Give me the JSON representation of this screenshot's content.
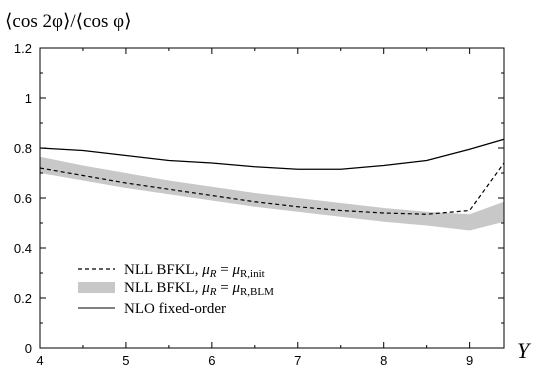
{
  "chart_data": {
    "type": "line",
    "ylabel": "⟨cos 2φ⟩/⟨cos φ⟩",
    "xlabel": "Y",
    "xlim": [
      4,
      9.4
    ],
    "ylim": [
      0,
      1.2
    ],
    "xticks": [
      "4",
      "5",
      "6",
      "7",
      "8",
      "9"
    ],
    "yticks": [
      "0",
      "0.2",
      "0.4",
      "0.6",
      "0.8",
      "1",
      "1.2"
    ],
    "grid": false,
    "legend_position": "bottom-left",
    "series": [
      {
        "name": "NLL BFKL, μR = μR,init",
        "style": "dashed",
        "color": "#000000",
        "x": [
          4,
          4.5,
          5,
          5.5,
          6,
          6.5,
          7,
          7.5,
          8,
          8.5,
          9,
          9.4
        ],
        "y": [
          0.72,
          0.69,
          0.66,
          0.635,
          0.61,
          0.585,
          0.565,
          0.55,
          0.54,
          0.535,
          0.55,
          0.74
        ]
      },
      {
        "name": "NLL BFKL, μR = μR,BLM",
        "style": "band",
        "color": "#c8c8c8",
        "x": [
          4,
          4.5,
          5,
          5.5,
          6,
          6.5,
          7,
          7.5,
          8,
          8.5,
          9,
          9.4
        ],
        "y_low": [
          0.7,
          0.67,
          0.64,
          0.615,
          0.59,
          0.565,
          0.545,
          0.525,
          0.505,
          0.49,
          0.47,
          0.505
        ],
        "y_high": [
          0.765,
          0.73,
          0.7,
          0.67,
          0.645,
          0.62,
          0.6,
          0.58,
          0.56,
          0.545,
          0.535,
          0.585
        ]
      },
      {
        "name": "NLO fixed-order",
        "style": "solid",
        "color": "#000000",
        "x": [
          4,
          4.5,
          5,
          5.5,
          6,
          6.5,
          7,
          7.5,
          8,
          8.5,
          9,
          9.4
        ],
        "y": [
          0.8,
          0.79,
          0.77,
          0.75,
          0.74,
          0.725,
          0.715,
          0.715,
          0.73,
          0.75,
          0.795,
          0.835
        ]
      }
    ],
    "legend": {
      "entry1": {
        "pre": "NLL BFKL, ",
        "mu": "μ",
        "sub": "R",
        "eq": " = ",
        "mu2": "μ",
        "sub2": "R,init"
      },
      "entry2": {
        "pre": "NLL BFKL, ",
        "mu": "μ",
        "sub": "R",
        "eq": " = ",
        "mu2": "μ",
        "sub2": "R,BLM"
      },
      "entry3": {
        "text": "NLO fixed-order"
      }
    }
  }
}
